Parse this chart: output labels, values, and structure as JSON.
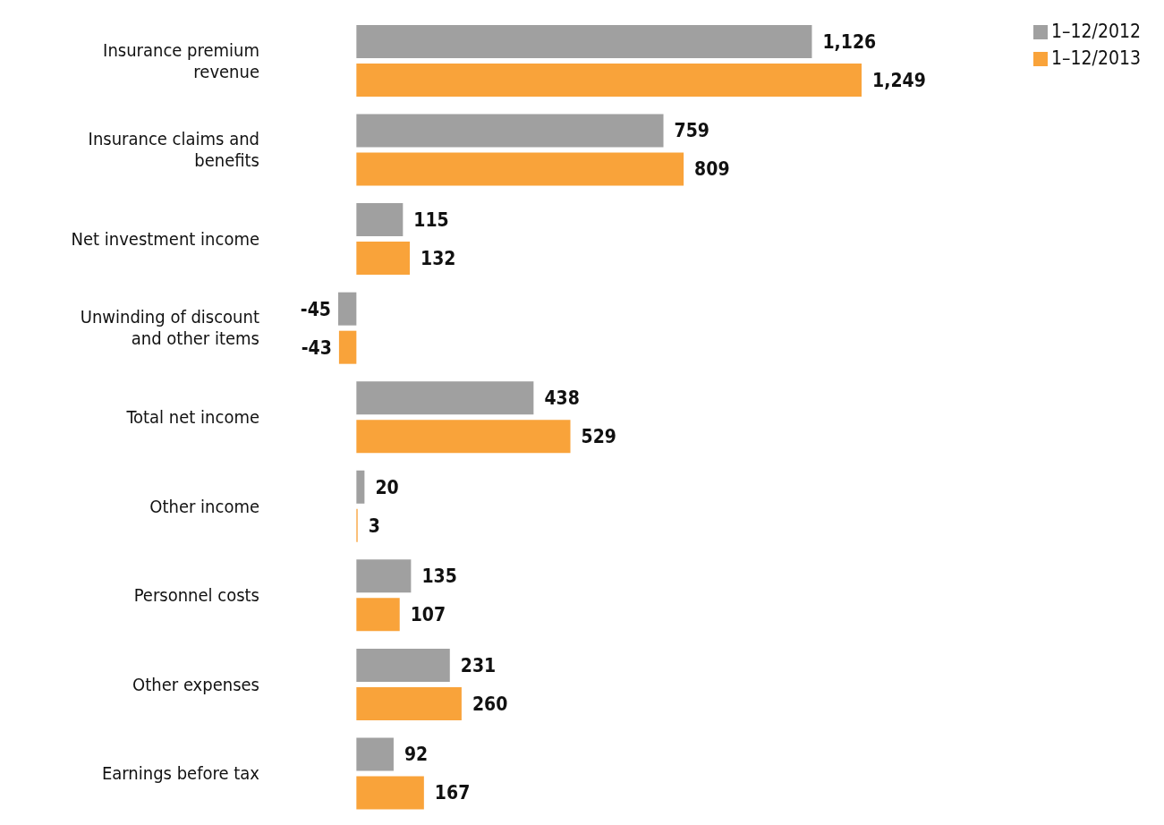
{
  "chart_data": {
    "type": "bar",
    "orientation": "horizontal",
    "categories": [
      "Insurance premium revenue",
      "Insurance claims and benefits",
      "Net investment income",
      "Unwinding of discount and other items",
      "Total net income",
      "Other income",
      "Personnel costs",
      "Other expenses",
      "Earnings before tax"
    ],
    "series": [
      {
        "name": "1–12/2012",
        "color": "#a0a0a0",
        "values": [
          1126,
          759,
          115,
          -45,
          438,
          20,
          135,
          231,
          92
        ],
        "value_labels": [
          "1,126",
          "759",
          "115",
          "-45",
          "438",
          "20",
          "135",
          "231",
          "92"
        ]
      },
      {
        "name": "1–12/2013",
        "color": "#f9a33a",
        "values": [
          1249,
          809,
          132,
          -43,
          529,
          3,
          107,
          260,
          167
        ],
        "value_labels": [
          "1,249",
          "809",
          "132",
          "-43",
          "529",
          "3",
          "107",
          "260",
          "167"
        ]
      }
    ],
    "legend": "top right",
    "tick_labels": "y"
  }
}
